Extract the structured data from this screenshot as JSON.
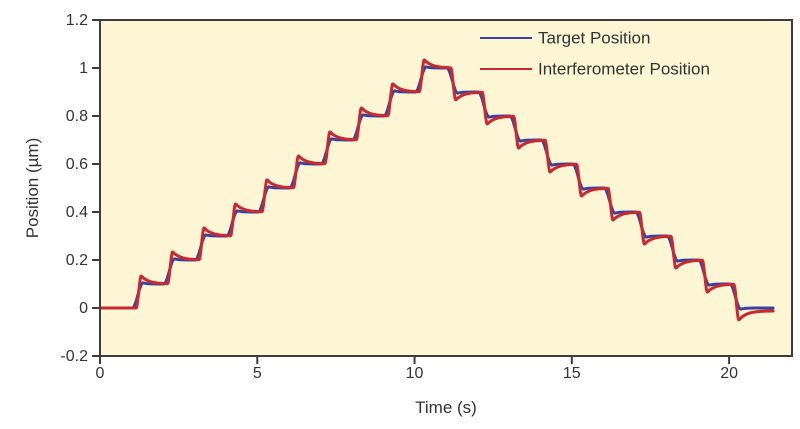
{
  "figure": {
    "background": "#ffffff"
  },
  "chart_data": {
    "type": "line",
    "title": "",
    "xlabel": "Time (s)",
    "ylabel": "Position (µm)",
    "xlim": [
      0,
      22
    ],
    "ylim": [
      -0.2,
      1.2
    ],
    "xticks": [
      0,
      5,
      10,
      15,
      20
    ],
    "xtick_labels": [
      "0",
      "5",
      "10",
      "15",
      "20"
    ],
    "yticks": [
      -0.2,
      0,
      0.2,
      0.4,
      0.6,
      0.8,
      1,
      1.2
    ],
    "ytick_labels": [
      "-0.2",
      "0",
      "0.2",
      "0.4",
      "0.6",
      "0.8",
      "1",
      "1.2"
    ],
    "grid": false,
    "legend_position": "top-right-inside",
    "plot_background": "#fcf6d5",
    "frame_color": "#3c3c3c",
    "text_color": "#333333",
    "t_start": 0,
    "t_end": 21.4,
    "step_times": [
      1,
      2,
      3,
      4,
      5,
      6,
      7,
      8,
      9,
      10,
      11,
      12,
      13,
      14,
      15,
      16,
      17,
      18,
      19,
      20
    ],
    "series": [
      {
        "name": "Target Position",
        "color": "#3a44a0",
        "line_width": 3,
        "levels": [
          0,
          0.1,
          0.2,
          0.3,
          0.4,
          0.5,
          0.6,
          0.7,
          0.8,
          0.9,
          1.0,
          0.9,
          0.8,
          0.7,
          0.6,
          0.5,
          0.4,
          0.3,
          0.2,
          0.1,
          0
        ],
        "response": {
          "lag": 0.03,
          "rise": 0.34,
          "overshoot": 0.05,
          "decay_tau": 0.12
        }
      },
      {
        "name": "Interferometer Position",
        "color": "#c9292f",
        "line_width": 3,
        "levels": [
          0,
          0.1,
          0.2,
          0.3,
          0.4,
          0.5,
          0.6,
          0.7,
          0.8,
          0.9,
          1.0,
          0.9,
          0.8,
          0.7,
          0.6,
          0.5,
          0.4,
          0.3,
          0.2,
          0.1,
          -0.012
        ],
        "response": {
          "lag": 0.15,
          "rise": 0.16,
          "overshoot": 0.34,
          "decay_tau": 0.24
        }
      }
    ]
  }
}
